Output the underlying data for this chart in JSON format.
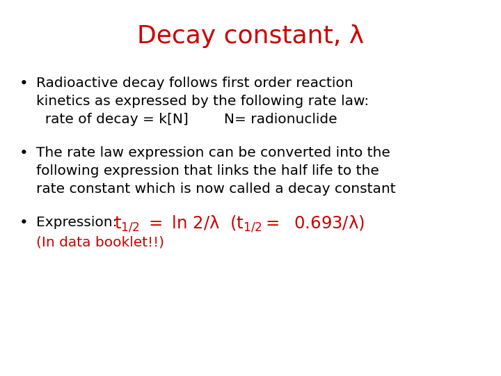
{
  "title": "Decay constant, λ",
  "title_color": "#cc0000",
  "title_fontsize": 26,
  "background_color": "#ffffff",
  "bullet_color": "#000000",
  "red_color": "#cc0000",
  "fs": 14.5,
  "fig_w": 7.2,
  "fig_h": 5.4,
  "dpi": 100,
  "bullet1_lines": [
    "Radioactive decay follows first order reaction",
    "kinetics as expressed by the following rate law:",
    "  rate of decay = k[N]        N= radionuclide"
  ],
  "bullet2_lines": [
    "The rate law expression can be converted into the",
    "following expression that links the half life to the",
    "rate constant which is now called a decay constant"
  ],
  "expr_black": "Expression:  ",
  "footnote_red": "(In data booklet!!)"
}
